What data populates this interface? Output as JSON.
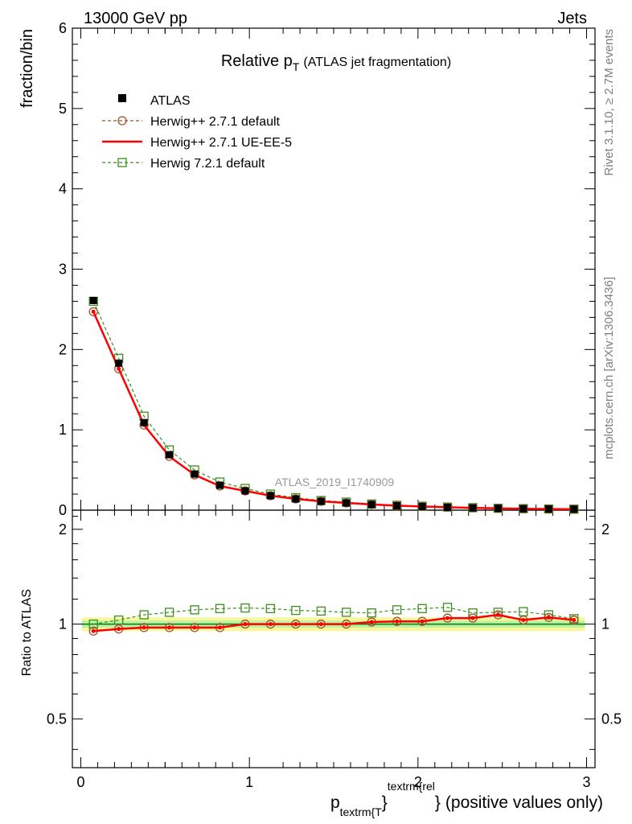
{
  "header": {
    "left": "13000 GeV pp",
    "right": "Jets"
  },
  "side_labels": {
    "rivet": "Rivet 3.1.10, ≥ 2.7M events",
    "mcplots": "mcplots.cern.ch [arXiv:1306.3436]"
  },
  "chart_data": {
    "type": "line",
    "title_main": "Relative p",
    "title_sub": "T",
    "title_rest": "(ATLAS jet fragmentation)",
    "analysis_label": "ATLAS_2019_I1740909",
    "ylabel": "fraction/bin",
    "ratio_ylabel": "Ratio to ATLAS",
    "xlabel": {
      "p": "p",
      "sub": "textrm{T",
      "brace1": "}",
      "sup": "textrm{rel",
      "brace2": "}",
      "rest": "(positive values only)"
    },
    "xlim": [
      -0.05,
      3.05
    ],
    "ylim": [
      0,
      6
    ],
    "ratio_ylim": [
      0.35,
      2.3
    ],
    "x_ticks": [
      "0",
      "1",
      "2",
      "3"
    ],
    "y_ticks": [
      "0",
      "1",
      "2",
      "3",
      "4",
      "5",
      "6"
    ],
    "ratio_ticks": [
      "0.5",
      "1",
      "2"
    ],
    "x": [
      0.075,
      0.225,
      0.375,
      0.525,
      0.675,
      0.825,
      0.975,
      1.125,
      1.275,
      1.425,
      1.575,
      1.725,
      1.875,
      2.025,
      2.175,
      2.325,
      2.475,
      2.625,
      2.775,
      2.925
    ],
    "legend": [
      {
        "name": "ATLAS",
        "color": "#000000"
      },
      {
        "name": "Herwig++ 2.7.1 default",
        "color": "#a0522d"
      },
      {
        "name": "Herwig++ 2.7.1 UE-EE-5",
        "color": "#ff0000"
      },
      {
        "name": "Herwig 7.2.1 default",
        "color": "#3b8e1f"
      }
    ],
    "series": [
      {
        "name": "ATLAS",
        "values": [
          2.61,
          1.83,
          1.09,
          0.69,
          0.45,
          0.31,
          0.24,
          0.18,
          0.14,
          0.11,
          0.09,
          0.07,
          0.055,
          0.045,
          0.035,
          0.028,
          0.022,
          0.018,
          0.014,
          0.012
        ]
      },
      {
        "name": "Herwig++ 2.7.1 default",
        "values": [
          2.47,
          1.76,
          1.06,
          0.67,
          0.44,
          0.3,
          0.24,
          0.18,
          0.14,
          0.11,
          0.09,
          0.071,
          0.056,
          0.046,
          0.036,
          0.029,
          0.023,
          0.018,
          0.014,
          0.012
        ]
      },
      {
        "name": "Herwig++ 2.7.1 UE-EE-5",
        "values": [
          2.47,
          1.76,
          1.06,
          0.67,
          0.44,
          0.3,
          0.24,
          0.18,
          0.14,
          0.11,
          0.09,
          0.071,
          0.056,
          0.046,
          0.036,
          0.029,
          0.023,
          0.018,
          0.014,
          0.012
        ]
      },
      {
        "name": "Herwig 7.2.1 default",
        "values": [
          2.6,
          1.89,
          1.17,
          0.75,
          0.5,
          0.35,
          0.27,
          0.2,
          0.155,
          0.12,
          0.1,
          0.077,
          0.061,
          0.05,
          0.039,
          0.031,
          0.024,
          0.019,
          0.015,
          0.013
        ]
      }
    ],
    "ratios": [
      {
        "name": "Herwig++ 2.7.1 default",
        "values": [
          0.95,
          0.965,
          0.975,
          0.975,
          0.975,
          0.975,
          1.0,
          1.0,
          1.0,
          1.0,
          1.0,
          1.015,
          1.02,
          1.02,
          1.045,
          1.045,
          1.07,
          1.03,
          1.05,
          1.03
        ]
      },
      {
        "name": "Herwig++ 2.7.1 UE-EE-5",
        "values": [
          0.95,
          0.965,
          0.975,
          0.975,
          0.975,
          0.975,
          1.0,
          1.0,
          1.0,
          1.0,
          1.0,
          1.015,
          1.02,
          1.02,
          1.045,
          1.045,
          1.07,
          1.03,
          1.05,
          1.03
        ]
      },
      {
        "name": "Herwig 7.2.1 default",
        "values": [
          1.0,
          1.03,
          1.07,
          1.09,
          1.11,
          1.12,
          1.125,
          1.12,
          1.105,
          1.1,
          1.09,
          1.085,
          1.11,
          1.12,
          1.13,
          1.085,
          1.09,
          1.095,
          1.07,
          1.04
        ]
      }
    ],
    "ratio_band": {
      "inner_half_width": 0.025,
      "outer_half_width": 0.05
    }
  }
}
